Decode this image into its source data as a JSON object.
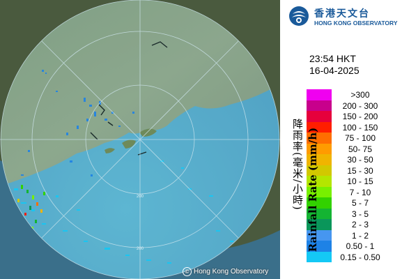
{
  "header": {
    "org_name_zh": "香港天文台",
    "org_name_en": "HONG KONG OBSERVATORY"
  },
  "timestamp": {
    "time": "23:54 HKT",
    "date": "16-04-2025"
  },
  "legend": {
    "title_en": "Rainfall Rate (mm/h)",
    "title_zh": "降雨率(毫米/小時)",
    "items": [
      {
        "label": ">300",
        "color": "#f000f0"
      },
      {
        "label": "200 - 300",
        "color": "#c8008c"
      },
      {
        "label": "150 - 200",
        "color": "#e6003c"
      },
      {
        "label": "100 - 150",
        "color": "#ff1e00"
      },
      {
        "label": "75 - 100",
        "color": "#ff6e00"
      },
      {
        "label": "50- 75",
        "color": "#ff9b00"
      },
      {
        "label": "30 - 50",
        "color": "#f0b400"
      },
      {
        "label": "15 - 30",
        "color": "#d2c800"
      },
      {
        "label": "10 - 15",
        "color": "#b4e600"
      },
      {
        "label": "7 - 10",
        "color": "#78f000"
      },
      {
        "label": "5 - 7",
        "color": "#32d200"
      },
      {
        "label": "3 - 5",
        "color": "#14b432"
      },
      {
        "label": "2 - 3",
        "color": "#0a965a"
      },
      {
        "label": "1 - 2",
        "color": "#4696f0"
      },
      {
        "label": "0.50 - 1",
        "color": "#1e82e6"
      },
      {
        "label": "0.15 - 0.50",
        "color": "#14c8f5"
      }
    ]
  },
  "map": {
    "range_rings": [
      "200",
      "200"
    ],
    "copyright": "Hong Kong Observatory",
    "copyright_symbol": "©"
  }
}
